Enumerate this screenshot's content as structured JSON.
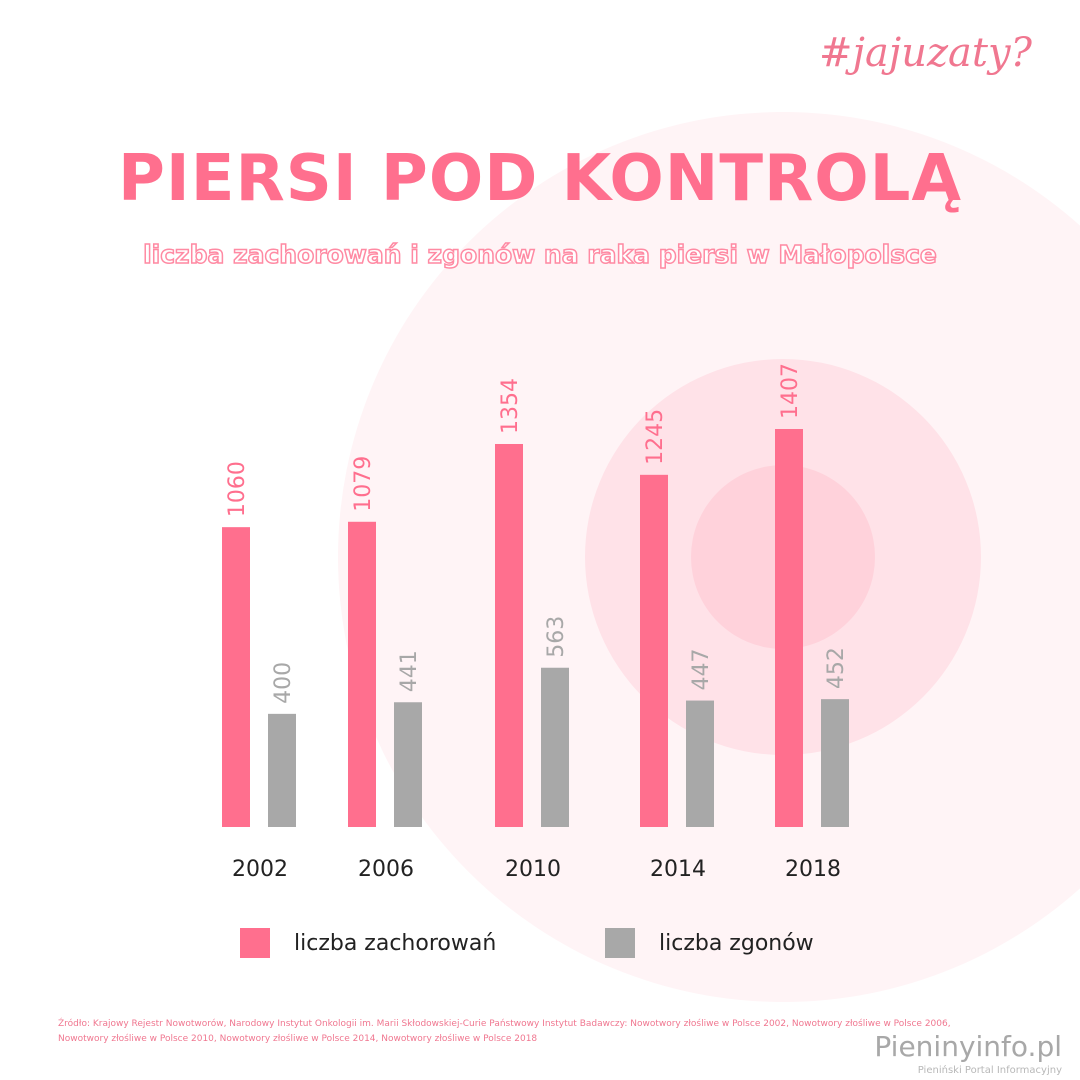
{
  "hashtag": "#jajuzaty?",
  "title": "PIERSI POD KONTROLĄ",
  "subtitle": "liczba zachorowań i zgonów na raka piersi w Małopolsce",
  "colors": {
    "accent": "#ff6f8e",
    "gray": "#a8a8a8",
    "bg_circle": "#ffe9ee"
  },
  "chart_data": {
    "type": "bar",
    "categories": [
      "2002",
      "2006",
      "2010",
      "2014",
      "2018"
    ],
    "series": [
      {
        "name": "liczba zachorowań",
        "values": [
          1060,
          1079,
          1354,
          1245,
          1407
        ],
        "color": "#ff6f8e"
      },
      {
        "name": "liczba zgonów",
        "values": [
          400,
          441,
          563,
          447,
          452
        ],
        "color": "#a8a8a8"
      }
    ],
    "ylim": [
      0,
      1500
    ],
    "grid": false,
    "legend": "bottom"
  },
  "legend": {
    "incidence_label": "liczba zachorowań",
    "deaths_label": "liczba zgonów"
  },
  "source": "Źródło: Krajowy Rejestr Nowotworów, Narodowy Instytut Onkologii im. Marii Skłodowskiej-Curie Państwowy Instytut Badawczy: Nowotwory złośliwe w Polsce 2002, Nowotwory złośliwe w Polsce 2006, Nowotwory złośliwe w Polsce 2010, Nowotwory złośliwe w Polsce 2014, Nowotwory złośliwe w Polsce 2018",
  "brand": {
    "name": "Pieninyinfo.pl",
    "tagline": "Pieniński Portal Informacyjny"
  }
}
